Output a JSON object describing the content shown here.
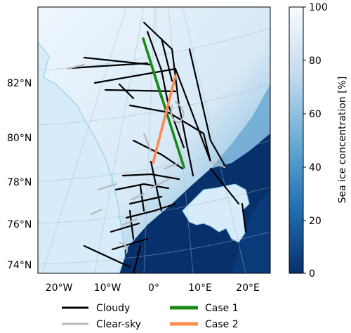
{
  "map": {
    "latitude_labels": [
      "82°N",
      "80°N",
      "78°N",
      "76°N",
      "74°N"
    ],
    "longitude_labels": [
      "20°W",
      "10°W",
      "0°",
      "10°E",
      "20°E"
    ]
  },
  "colorbar": {
    "label": "Sea ice concentration [%]",
    "ticks": [
      "100",
      "80",
      "60",
      "40",
      "20",
      "0"
    ],
    "range": [
      0,
      100
    ],
    "colors": [
      "#08306b",
      "#2171b5",
      "#6baed6",
      "#c6dbef",
      "#f7fbff"
    ]
  },
  "legend": {
    "items": [
      {
        "label": "Cloudy",
        "color": "#000000"
      },
      {
        "label": "Case 1",
        "color": "#1a8a16"
      },
      {
        "label": "Clear-sky",
        "color": "#b8b8b8"
      },
      {
        "label": "Case 2",
        "color": "#ff8a50"
      }
    ]
  },
  "colors": {
    "land": "#d6ecfa",
    "coast": "#8ecae6",
    "cloudy_track": "#000000",
    "clear_track": "#b8b8b8",
    "case1_track": "#1a8a16",
    "case2_track": "#ff8a50"
  }
}
